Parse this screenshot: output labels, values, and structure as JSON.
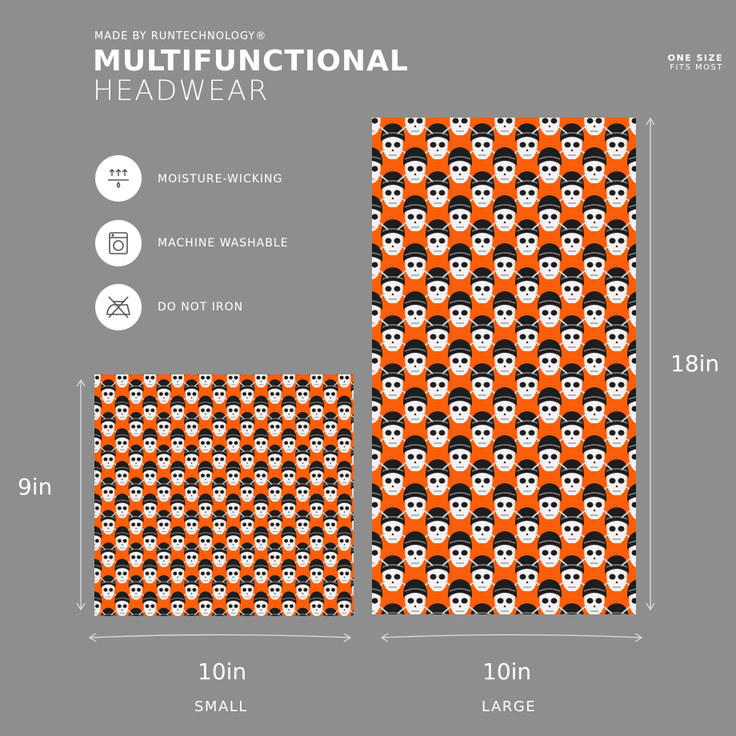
{
  "header": {
    "made_by": "MADE BY RUNTECHNOLOGY®",
    "title": "MULTIFUNCTIONAL",
    "subtitle": "HEADWEAR"
  },
  "size_note": {
    "line1": "ONE SIZE",
    "line2": "FITS MOST"
  },
  "features": [
    {
      "label": "MOISTURE-WICKING",
      "icon": "moisture-wicking-icon"
    },
    {
      "label": "MACHINE WASHABLE",
      "icon": "washing-machine-icon"
    },
    {
      "label": "DO NOT IRON",
      "icon": "no-iron-icon"
    }
  ],
  "products": [
    {
      "name": "SMALL",
      "width": "10in",
      "height": "9in"
    },
    {
      "name": "LARGE",
      "width": "10in",
      "height": "18in"
    }
  ],
  "colors": {
    "background": "#8e8e8e",
    "fabric": "#fb5f0c",
    "helmet": "#1e1e1e",
    "skull": "#f2f2f2"
  }
}
